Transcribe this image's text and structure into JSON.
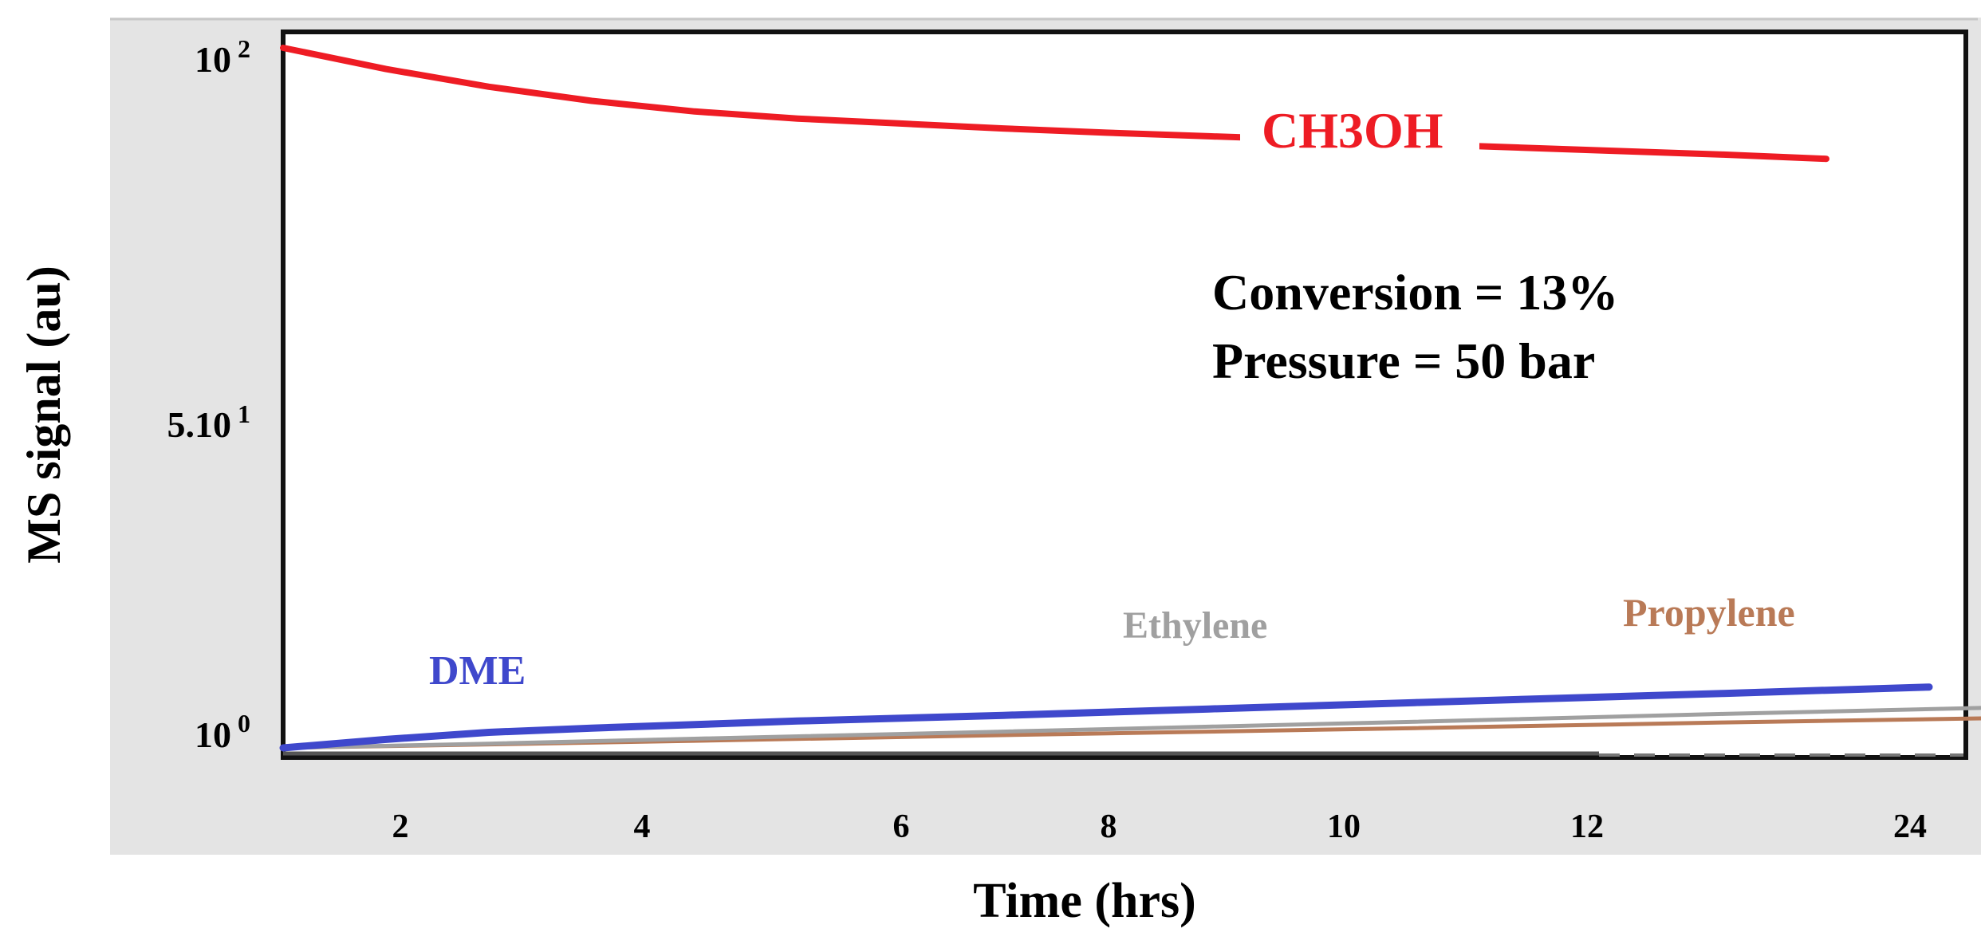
{
  "chart_data": {
    "type": "line",
    "xlabel": "Time (hrs)",
    "ylabel": "MS signal (au)",
    "x_ticks": [
      "2",
      "4",
      "6",
      "8",
      "10",
      "12",
      "24"
    ],
    "y_ticks": [
      {
        "base": "10",
        "exp": "2",
        "value": 100
      },
      {
        "base": "5.10",
        "exp": "1",
        "value": 50
      },
      {
        "base": "10",
        "exp": "0",
        "value": 1
      }
    ],
    "annotations": [
      "Conversion = 13%",
      "Pressure = 50 bar"
    ],
    "series": [
      {
        "name": "CH3OH",
        "color": "#ee1c24",
        "x": [
          1,
          2,
          3,
          4,
          5,
          6,
          7,
          8,
          9,
          10,
          11,
          12,
          13,
          14,
          15,
          16
        ],
        "y": [
          100,
          97,
          94.5,
          92.5,
          91,
          90,
          89.3,
          88.6,
          88,
          87.5,
          87,
          86.4,
          85.9,
          85.4,
          84.9,
          84.3
        ]
      },
      {
        "name": "DME",
        "color": "#3f48cc",
        "x": [
          1,
          2,
          3,
          4,
          6,
          8,
          10,
          12,
          15,
          17
        ],
        "y": [
          1,
          2.2,
          3.2,
          3.8,
          4.8,
          5.6,
          6.5,
          7.4,
          8.7,
          9.6
        ]
      },
      {
        "name": "Ethylene",
        "color": "#a0a0a0",
        "x": [
          1,
          3,
          5,
          8,
          10,
          12,
          15,
          18.5
        ],
        "y": [
          1,
          1.6,
          2.3,
          3.3,
          4,
          4.7,
          5.8,
          7
        ]
      },
      {
        "name": "Propylene",
        "color": "#b97a57",
        "x": [
          1,
          3,
          5,
          8,
          10,
          12,
          15,
          18.5
        ],
        "y": [
          1,
          1.5,
          2,
          2.8,
          3.3,
          3.8,
          4.6,
          5.4
        ]
      }
    ]
  }
}
